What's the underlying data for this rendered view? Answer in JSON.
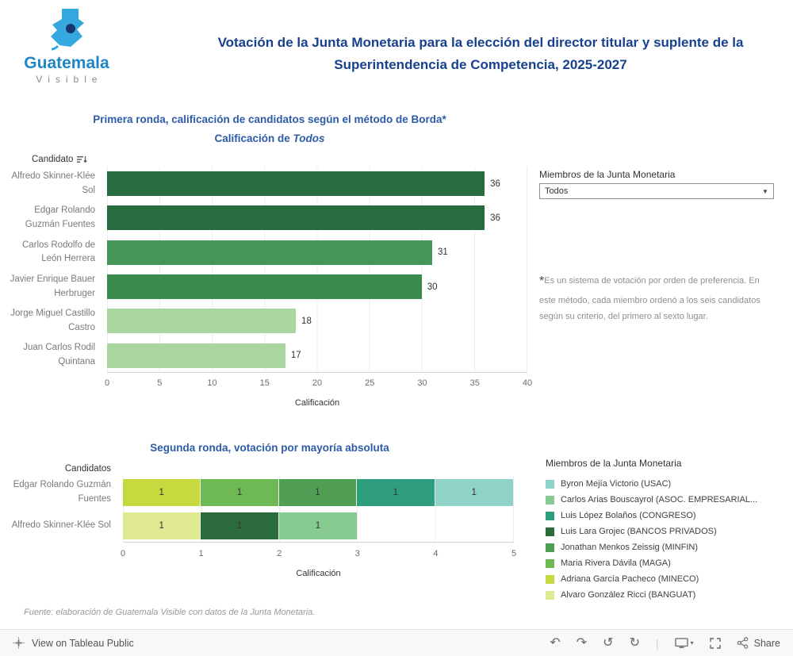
{
  "brand": {
    "name_line1": "Guatemala",
    "name_line2": "Visible"
  },
  "header": {
    "title": "Votación de la Junta Monetaria para la elección del director titular y suplente de la Superintendencia de Competencia, 2025-2027"
  },
  "chart1": {
    "title_line1": "Primera ronda, calificación de candidatos según el método de Borda*",
    "title_line2_prefix": "Calificación de ",
    "title_line2_emphasis": "Todos",
    "col_label": "Candidato",
    "x_axis_label": "Calificación",
    "x_ticks": [
      "0",
      "5",
      "10",
      "15",
      "20",
      "25",
      "30",
      "35",
      "40"
    ],
    "x_max": 40,
    "bars": [
      {
        "label": "Alfredo Skinner-Klée Sol",
        "value": 36,
        "color": "#266c3e"
      },
      {
        "label": "Edgar Rolando Guzmán Fuentes",
        "value": 36,
        "color": "#266c3e"
      },
      {
        "label": "Carlos Rodolfo de León Herrera",
        "value": 31,
        "color": "#459759"
      },
      {
        "label": "Javier Enrique Bauer Herbruger",
        "value": 30,
        "color": "#3a8a4d"
      },
      {
        "label": "Jorge Miguel Castillo Castro",
        "value": 18,
        "color": "#a9d79f"
      },
      {
        "label": "Juan Carlos Rodil Quintana",
        "value": 17,
        "color": "#a9d79f"
      }
    ]
  },
  "filter": {
    "label": "Miembros de la Junta Monetaria",
    "value": "Todos"
  },
  "note": {
    "asterisk": "*",
    "text": "Es un sistema de votación por orden de preferencia. En este método, cada miembro ordenó a los seis candidatos según su criterio, del primero al sexto lugar."
  },
  "chart2": {
    "title": "Segunda ronda, votación por mayoría absoluta",
    "col_label": "Candidatos",
    "x_axis_label": "Calificación",
    "x_ticks": [
      "0",
      "1",
      "2",
      "3",
      "4",
      "5"
    ],
    "x_max": 5,
    "rows": [
      {
        "label": "Edgar Rolando Guzmán Fuentes",
        "segments": [
          {
            "member": "Adriana García Pacheco (MINECO)",
            "value": 1,
            "color": "#c6d93f"
          },
          {
            "member": "Maria Rivera Dávila (MAGA)",
            "value": 1,
            "color": "#6fb954"
          },
          {
            "member": "Jonathan Menkos Zeissig (MINFIN)",
            "value": 1,
            "color": "#4f9e53"
          },
          {
            "member": "Luis López Bolaños (CONGRESO)",
            "value": 1,
            "color": "#2f9e7e"
          },
          {
            "member": "Byron Mejía Victorio (USAC)",
            "value": 1,
            "color": "#8fd2c8"
          }
        ]
      },
      {
        "label": "Alfredo Skinner-Klée Sol",
        "segments": [
          {
            "member": "Alvaro González Ricci (BANGUAT)",
            "value": 1,
            "color": "#dfe98f"
          },
          {
            "member": "Luis Lara Grojec (BANCOS PRIVADOS)",
            "value": 1,
            "color": "#2c6b3c"
          },
          {
            "member": "Carlos Arias Bouscayrol (ASOC. EMPRESARIAL...",
            "value": 1,
            "color": "#87cb90"
          }
        ]
      }
    ]
  },
  "legend": {
    "title": "Miembros de la Junta Monetaria",
    "items": [
      {
        "label": "Byron Mejía Victorio (USAC)",
        "color": "#8fd2c8"
      },
      {
        "label": "Carlos Arias Bouscayrol (ASOC. EMPRESARIAL...",
        "color": "#87cb90"
      },
      {
        "label": "Luis López Bolaños (CONGRESO)",
        "color": "#2f9e7e"
      },
      {
        "label": "Luis Lara Grojec (BANCOS PRIVADOS)",
        "color": "#2c6b3c"
      },
      {
        "label": "Jonathan Menkos Zeissig (MINFIN)",
        "color": "#4f9e53"
      },
      {
        "label": "Maria Rivera Dávila (MAGA)",
        "color": "#6fb954"
      },
      {
        "label": "Adriana García Pacheco (MINECO)",
        "color": "#c6d93f"
      },
      {
        "label": "Alvaro González Ricci (BANGUAT)",
        "color": "#dfe98f"
      }
    ]
  },
  "footer": {
    "source": "Fuente: elaboración de Guatemala Visible con datos de la Junta Monetaria."
  },
  "toolbar": {
    "view_label": "View on Tableau Public",
    "share_label": "Share",
    "icons": {
      "undo": "↶",
      "redo": "↷",
      "reset": "↺",
      "refresh": "↻",
      "caret": "▾",
      "dropdown_caret": "▼"
    }
  },
  "chart_data": [
    {
      "type": "bar",
      "orientation": "horizontal",
      "title": "Primera ronda, calificación de candidatos según el método de Borda* — Calificación de Todos",
      "categories": [
        "Alfredo Skinner-Klée Sol",
        "Edgar Rolando Guzmán Fuentes",
        "Carlos Rodolfo de León Herrera",
        "Javier Enrique Bauer Herbruger",
        "Jorge Miguel Castillo Castro",
        "Juan Carlos Rodil Quintana"
      ],
      "values": [
        36,
        36,
        31,
        30,
        18,
        17
      ],
      "xlabel": "Calificación",
      "ylabel": "Candidato",
      "xlim": [
        0,
        40
      ],
      "x_ticks": [
        0,
        5,
        10,
        15,
        20,
        25,
        30,
        35,
        40
      ],
      "grid": true,
      "data_labels": true
    },
    {
      "type": "bar",
      "orientation": "horizontal",
      "stacked": true,
      "title": "Segunda ronda, votación por mayoría absoluta",
      "categories": [
        "Edgar Rolando Guzmán Fuentes",
        "Alfredo Skinner-Klée Sol"
      ],
      "series": [
        {
          "name": "Adriana García Pacheco (MINECO)",
          "values": [
            1,
            0
          ]
        },
        {
          "name": "Maria Rivera Dávila (MAGA)",
          "values": [
            1,
            0
          ]
        },
        {
          "name": "Jonathan Menkos Zeissig (MINFIN)",
          "values": [
            1,
            0
          ]
        },
        {
          "name": "Luis López Bolaños (CONGRESO)",
          "values": [
            1,
            0
          ]
        },
        {
          "name": "Byron Mejía Victorio (USAC)",
          "values": [
            1,
            0
          ]
        },
        {
          "name": "Alvaro González Ricci (BANGUAT)",
          "values": [
            0,
            1
          ]
        },
        {
          "name": "Luis Lara Grojec (BANCOS PRIVADOS)",
          "values": [
            0,
            1
          ]
        },
        {
          "name": "Carlos Arias Bouscayrol (ASOC. EMPRESARIAL...",
          "values": [
            0,
            1
          ]
        }
      ],
      "xlabel": "Calificación",
      "xlim": [
        0,
        5
      ],
      "x_ticks": [
        0,
        1,
        2,
        3,
        4,
        5
      ],
      "grid": true,
      "legend_title": "Miembros de la Junta Monetaria",
      "legend_position": "right",
      "data_labels": true
    }
  ]
}
